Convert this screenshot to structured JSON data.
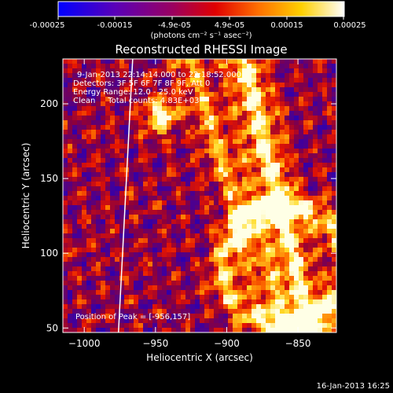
{
  "colorbar": {
    "ticks": [
      "-0.00025",
      "-0.00015",
      "-4.9e-05",
      "4.9e-05",
      "0.00015",
      "0.00025"
    ],
    "unit_label": "(photons cm⁻² s⁻¹ asec⁻²)",
    "range": [
      -0.00025,
      0.00025
    ]
  },
  "info": {
    "line1": "9-Jan-2013 22:14:14.000 to 22:18:52.000",
    "line2": "Detectors: 3F 5F 6F 7F 8F 9F, Att 0",
    "line3": "Energy Range: 12.0 - 25.0 keV",
    "line4": "Clean     Total counts: 4.83E+03",
    "peak": "Position of Peak = [-956,157]"
  },
  "footer_date": "16-Jan-2013 16:25",
  "chart_data": {
    "type": "heatmap",
    "title": "Reconstructed RHESSI Image",
    "xlabel": "Heliocentric X (arcsec)",
    "ylabel": "Heliocentric Y (arcsec)",
    "xlim": [
      -1015,
      -823
    ],
    "ylim": [
      47,
      230
    ],
    "xticks": [
      -1000,
      -950,
      -900,
      -850
    ],
    "xtick_labels": [
      "−1000",
      "−950",
      "−900",
      "−850"
    ],
    "yticks": [
      50,
      100,
      150,
      200
    ],
    "ytick_labels": [
      "50",
      "100",
      "150",
      "200"
    ],
    "colormap": "rainbow (blue-purple-red-orange-yellow-white)",
    "peak": [
      -956,
      157
    ],
    "limb_line": [
      [
        -966,
        230
      ],
      [
        -976,
        47
      ]
    ],
    "grid": false
  }
}
